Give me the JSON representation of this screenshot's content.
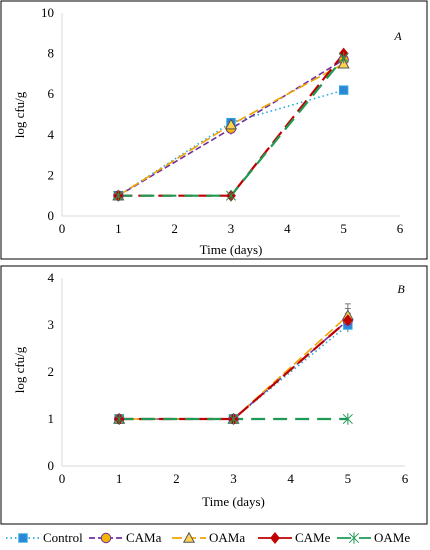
{
  "chart_data": [
    {
      "type": "line",
      "panel_label": "A",
      "xlabel": "Time (days)",
      "ylabel": "log cfu/g",
      "xlim": [
        0,
        6
      ],
      "ylim": [
        0,
        10
      ],
      "xticks": [
        "0",
        "1",
        "2",
        "3",
        "4",
        "5",
        "6"
      ],
      "yticks": [
        "0",
        "2",
        "4",
        "6",
        "8",
        "10"
      ],
      "series": [
        {
          "name": "Control",
          "x": [
            1,
            3,
            5
          ],
          "y": [
            1.0,
            4.6,
            6.2
          ],
          "err": [
            0,
            0.15,
            0.15
          ]
        },
        {
          "name": "CAMa",
          "x": [
            1,
            3,
            5
          ],
          "y": [
            1.0,
            4.3,
            7.7
          ],
          "err": [
            0,
            0.3,
            0.2
          ]
        },
        {
          "name": "OAMa",
          "x": [
            1,
            3,
            5
          ],
          "y": [
            1.0,
            4.5,
            7.5
          ],
          "err": [
            0,
            0.2,
            0.2
          ]
        },
        {
          "name": "CAMe",
          "x": [
            1,
            3,
            5
          ],
          "y": [
            1.0,
            1.0,
            8.0
          ],
          "err": [
            0,
            0,
            0.1
          ]
        },
        {
          "name": "OAMe",
          "x": [
            1,
            3,
            5
          ],
          "y": [
            1.0,
            1.0,
            7.8
          ],
          "err": [
            0,
            0,
            0.1
          ]
        }
      ]
    },
    {
      "type": "line",
      "panel_label": "B",
      "xlabel": "Time (days)",
      "ylabel": "log cfu/g",
      "xlim": [
        0,
        6
      ],
      "ylim": [
        0,
        4
      ],
      "xticks": [
        "0",
        "1",
        "2",
        "3",
        "4",
        "5",
        "6"
      ],
      "yticks": [
        "0",
        "1",
        "2",
        "3",
        "4"
      ],
      "series": [
        {
          "name": "Control",
          "x": [
            1,
            3,
            5
          ],
          "y": [
            1.0,
            1.0,
            3.0
          ],
          "err": [
            0,
            0,
            0.1
          ]
        },
        {
          "name": "CAMa",
          "x": [
            1,
            3,
            5
          ],
          "y": [
            1.0,
            1.0,
            3.1
          ],
          "err": [
            0,
            0,
            0.25
          ]
        },
        {
          "name": "OAMa",
          "x": [
            1,
            3,
            5
          ],
          "y": [
            1.0,
            1.0,
            3.2
          ],
          "err": [
            0,
            0,
            0.25
          ]
        },
        {
          "name": "CAMe",
          "x": [
            1,
            3,
            5
          ],
          "y": [
            1.0,
            1.0,
            3.1
          ],
          "err": [
            0,
            0,
            0.15
          ]
        },
        {
          "name": "OAMe",
          "x": [
            1,
            3,
            5
          ],
          "y": [
            1.0,
            1.0,
            1.0
          ],
          "err": [
            0,
            0,
            0
          ]
        }
      ]
    }
  ],
  "legend": {
    "placement": "bottom",
    "entries": [
      "Control",
      "CAMa",
      "OAMa",
      "CAMe",
      "OAMe"
    ]
  },
  "styles": {
    "Control": {
      "color": "#2aa7e0",
      "dash": "1.5 3",
      "marker": "square",
      "fill": "#2e86d6"
    },
    "CAMa": {
      "color": "#7030a0",
      "dash": "6 3",
      "marker": "circle",
      "fill": "#f2b600"
    },
    "OAMa": {
      "color": "#f0a400",
      "dash": "10 4",
      "marker": "triangle",
      "fill": "#ffd34d"
    },
    "CAMe": {
      "color": "#c00000",
      "dash": "14 6",
      "marker": "diamond",
      "fill": "#c00000"
    },
    "OAMe": {
      "color": "#1f9a55",
      "dash": "14 8",
      "marker": "star",
      "fill": "#1f9a55"
    }
  }
}
